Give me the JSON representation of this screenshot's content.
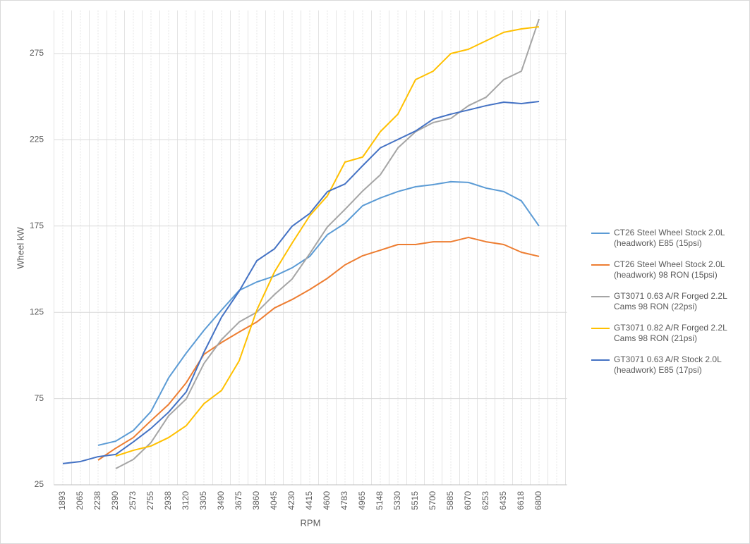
{
  "chart_data": {
    "type": "line",
    "x_label": "RPM",
    "y_label": "Wheel kW",
    "categories": [
      "1893",
      "2065",
      "2238",
      "2390",
      "2573",
      "2755",
      "2938",
      "3120",
      "3305",
      "3490",
      "3675",
      "3860",
      "4045",
      "4230",
      "4415",
      "4600",
      "4783",
      "4965",
      "5148",
      "5330",
      "5515",
      "5700",
      "5885",
      "6070",
      "6253",
      "6435",
      "6618",
      "6800",
      null
    ],
    "ylim": [
      25,
      300
    ],
    "yticks": [
      25,
      75,
      125,
      175,
      225,
      275
    ],
    "grid": true,
    "legend": "right",
    "series": [
      {
        "name": "CT26 Steel Wheel Stock 2.0L (headwork) E85 (15psi)",
        "color": "#5b9bd5",
        "values": [
          null,
          null,
          47.9,
          50.3,
          56.5,
          67.5,
          87,
          101.4,
          114.5,
          126.3,
          137.7,
          142.6,
          146,
          150.8,
          157.4,
          170,
          176.6,
          186.8,
          191.3,
          195,
          197.8,
          199,
          200.7,
          200.3,
          197,
          195,
          189.6,
          175,
          null
        ]
      },
      {
        "name": "CT26 Steel Wheel Stock 2.0L (headwork) 98 RON (15psi)",
        "color": "#ed7d31",
        "values": [
          null,
          null,
          39.3,
          46.2,
          52.4,
          62.2,
          71.6,
          84.2,
          100.6,
          107.5,
          113.6,
          119.4,
          127.5,
          132.4,
          138.2,
          144.7,
          152.5,
          157.8,
          161,
          164.3,
          164.3,
          165.9,
          165.9,
          168.4,
          165.9,
          164.3,
          159.8,
          157.4,
          null
        ]
      },
      {
        "name": "GT3071 0.63 A/R Forged 2.2L Cams 98 RON (22psi)",
        "color": "#a5a5a5",
        "values": [
          null,
          null,
          null,
          34.4,
          39.7,
          49.5,
          65,
          74.8,
          95.3,
          109.2,
          119.4,
          125.1,
          135.3,
          144.3,
          159,
          174.5,
          184.7,
          195.3,
          204.7,
          220.3,
          229.7,
          235,
          237.4,
          244.8,
          249.7,
          259.9,
          264.8,
          295,
          null
        ]
      },
      {
        "name": "GT3071 0.82 A/R Forged 2.2L Cams 98 RON (21psi)",
        "color": "#ffc000",
        "values": [
          null,
          null,
          null,
          41.7,
          45,
          47.5,
          52.4,
          59.3,
          72,
          79.7,
          96.9,
          126.3,
          148.4,
          165.1,
          181,
          192.5,
          212.1,
          215,
          229.7,
          239.9,
          259.9,
          264.8,
          275,
          277.5,
          282.4,
          287.3,
          289.3,
          290.5,
          null
        ]
      },
      {
        "name": "GT3071 0.63 A/R Stock 2.0L (headwork) E85 (17psi)",
        "color": "#4472c4",
        "values": [
          37.3,
          38.5,
          41.3,
          42.6,
          49.9,
          57.7,
          67.1,
          78.9,
          101.8,
          122.2,
          137.3,
          154.9,
          161.8,
          174.9,
          182.3,
          194.9,
          199.4,
          210,
          220.3,
          225.2,
          230.1,
          237,
          239.9,
          242.3,
          244.8,
          246.8,
          246,
          247.2,
          null
        ]
      }
    ]
  }
}
